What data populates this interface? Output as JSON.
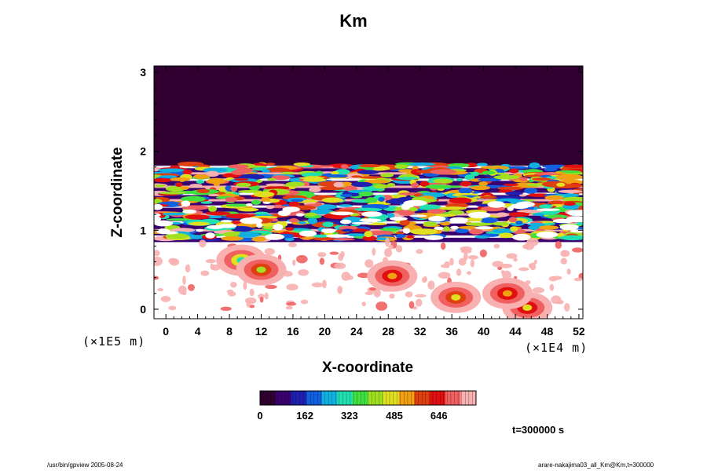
{
  "chart_data": {
    "type": "heatmap",
    "title": "Km",
    "xlabel": "X-coordinate",
    "ylabel": "Z-coordinate",
    "x_scale_label": "(×1E4 m)",
    "y_scale_label": "(×1E5 m)",
    "xlim": [
      -1.5,
      52.5
    ],
    "ylim": [
      -0.12,
      3.08
    ],
    "x_ticks": [
      0,
      4,
      8,
      12,
      16,
      20,
      24,
      28,
      32,
      36,
      40,
      44,
      48,
      52
    ],
    "y_ticks": [
      0,
      1,
      2,
      3
    ],
    "colorbar": {
      "range": [
        0,
        780
      ],
      "tick_values": [
        0,
        162,
        323,
        485,
        646
      ],
      "tick_labels": [
        "0",
        "162",
        "323",
        "485",
        "646"
      ],
      "colors": [
        "#300030",
        "#3a0070",
        "#2020b0",
        "#1060e0",
        "#10b0e0",
        "#20e0b0",
        "#40e040",
        "#a0e020",
        "#e0e020",
        "#f0a010",
        "#e04010",
        "#e01010",
        "#f06060",
        "#f8b0b0"
      ]
    },
    "fields": {
      "background_low_value": 780,
      "upper_layer": {
        "z_range": [
          1.82,
          3.08
        ],
        "value": 40
      },
      "banded_layer": {
        "z_range": [
          0.85,
          1.82
        ]
      },
      "patches": [
        {
          "x": 9.5,
          "z": 0.62,
          "value": 450
        },
        {
          "x": 12,
          "z": 0.5,
          "value": 560
        },
        {
          "x": 28.5,
          "z": 0.42,
          "value": 660
        },
        {
          "x": 36.5,
          "z": 0.15,
          "value": 600
        },
        {
          "x": 45.5,
          "z": 0.02,
          "value": 620
        },
        {
          "x": 43,
          "z": 0.2,
          "value": 640
        }
      ]
    },
    "time_label": "t=300000 s"
  },
  "footer": {
    "left": "/usr/bin/gpview 2005-08-24",
    "right": "arare-nakajima03_all_Km@Km,t=300000"
  }
}
